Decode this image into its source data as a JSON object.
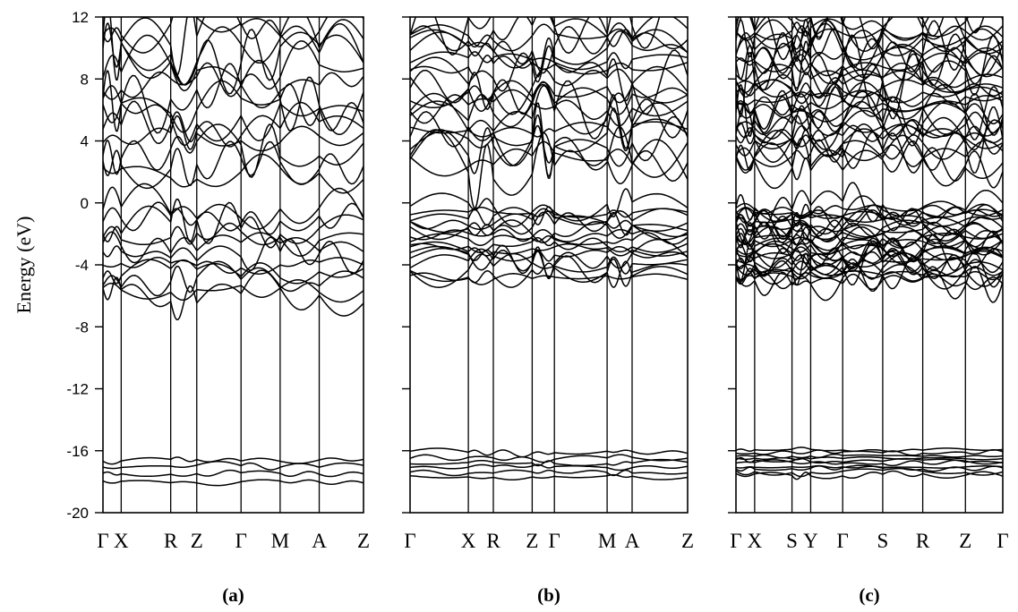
{
  "chart_data": [
    {
      "type": "line",
      "panel_label": "(a)",
      "ylabel": "Energy (eV)",
      "ylim": [
        -20,
        12
      ],
      "yticks": [
        12,
        8,
        4,
        0,
        -4,
        -8,
        -12,
        -16,
        -20
      ],
      "k_points": [
        "Γ",
        "X",
        "R",
        "Z",
        "Γ",
        "M",
        "A",
        "Z"
      ],
      "k_positions": [
        0,
        0.07,
        0.26,
        0.36,
        0.53,
        0.68,
        0.83,
        1.0
      ],
      "band_seed": 11,
      "bands": {
        "conduction": {
          "count": 14,
          "min": 1.8,
          "max": 12
        },
        "valence": {
          "count": 11,
          "min": -6.2,
          "max": -0.2
        },
        "low": {
          "count": 4,
          "min": -18.1,
          "max": -16.2
        }
      }
    },
    {
      "type": "line",
      "panel_label": "(b)",
      "ylabel": "",
      "ylim": [
        -20,
        12
      ],
      "yticks": [
        12,
        8,
        4,
        0,
        -4,
        -8,
        -12,
        -16,
        -20
      ],
      "k_points": [
        "Γ",
        "X",
        "R",
        "Z",
        "Γ",
        "M",
        "A",
        "Z"
      ],
      "k_positions": [
        0,
        0.21,
        0.3,
        0.44,
        0.52,
        0.71,
        0.8,
        1.0
      ],
      "band_seed": 29,
      "bands": {
        "conduction": {
          "count": 20,
          "min": 2.2,
          "max": 12
        },
        "valence": {
          "count": 16,
          "min": -4.9,
          "max": -0.1
        },
        "low": {
          "count": 6,
          "min": -17.8,
          "max": -15.9
        }
      }
    },
    {
      "type": "line",
      "panel_label": "(c)",
      "ylabel": "",
      "ylim": [
        -20,
        12
      ],
      "yticks": [
        12,
        8,
        4,
        0,
        -4,
        -8,
        -12,
        -16,
        -20
      ],
      "k_points": [
        "Γ",
        "X",
        "S",
        "Y",
        "Γ",
        "S",
        "R",
        "Z",
        "Γ"
      ],
      "k_positions": [
        0,
        0.07,
        0.21,
        0.28,
        0.4,
        0.55,
        0.7,
        0.86,
        1.0
      ],
      "band_seed": 47,
      "bands": {
        "conduction": {
          "count": 32,
          "min": 2.5,
          "max": 12
        },
        "valence": {
          "count": 30,
          "min": -5.1,
          "max": -0.1
        },
        "low": {
          "count": 10,
          "min": -17.6,
          "max": -15.8
        }
      }
    }
  ]
}
